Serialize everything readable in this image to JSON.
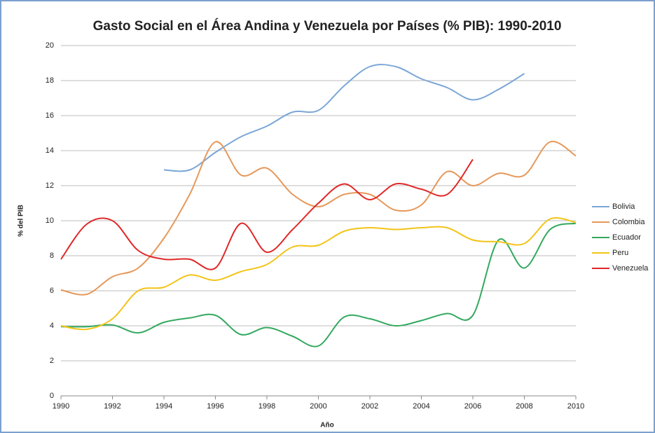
{
  "chart_data": {
    "type": "line",
    "title": "Gasto Social en el Área Andina y Venezuela por Países (% PIB): 1990-2010",
    "x_label": "Año",
    "y_label": "% del PIB",
    "x": [
      1990,
      1991,
      1992,
      1993,
      1994,
      1995,
      1996,
      1997,
      1998,
      1999,
      2000,
      2001,
      2002,
      2003,
      2004,
      2005,
      2006,
      2007,
      2008,
      2009,
      2010
    ],
    "xlim": [
      1990,
      2010
    ],
    "xticks": [
      1990,
      1992,
      1994,
      1996,
      1998,
      2000,
      2002,
      2004,
      2006,
      2008,
      2010
    ],
    "ylim": [
      0,
      20
    ],
    "yticks": [
      0,
      2,
      4,
      6,
      8,
      10,
      12,
      14,
      16,
      18,
      20
    ],
    "grid": true,
    "legend": "right",
    "smooth": true,
    "series": [
      {
        "name": "Bolivia",
        "color": "#7ba7d7",
        "values": [
          null,
          null,
          null,
          null,
          12.9,
          12.9,
          13.9,
          14.8,
          15.4,
          16.2,
          16.3,
          17.7,
          18.8,
          18.8,
          18.1,
          17.6,
          16.9,
          17.5,
          18.4,
          null,
          null
        ]
      },
      {
        "name": "Colombia",
        "color": "#e6985a",
        "values": [
          6.05,
          5.8,
          6.8,
          7.3,
          9.0,
          11.5,
          14.5,
          12.6,
          13.0,
          11.5,
          10.8,
          11.5,
          11.5,
          10.6,
          10.9,
          12.8,
          12.0,
          12.7,
          12.6,
          14.5,
          13.7
        ]
      },
      {
        "name": "Ecuador",
        "color": "#33a95e",
        "values": [
          3.95,
          3.95,
          4.05,
          3.6,
          4.2,
          4.45,
          4.6,
          3.5,
          3.9,
          3.4,
          2.85,
          4.5,
          4.4,
          4.0,
          4.3,
          4.7,
          4.6,
          8.9,
          7.3,
          9.5,
          9.85
        ]
      },
      {
        "name": "Peru",
        "color": "#f2c418",
        "values": [
          4.0,
          3.8,
          4.4,
          6.0,
          6.2,
          6.9,
          6.6,
          7.1,
          7.5,
          8.5,
          8.6,
          9.4,
          9.6,
          9.5,
          9.6,
          9.6,
          8.9,
          8.8,
          8.7,
          10.1,
          9.9
        ]
      },
      {
        "name": "Venezuela",
        "color": "#e02828",
        "values": [
          7.8,
          9.8,
          10.0,
          8.3,
          7.8,
          7.8,
          7.3,
          9.85,
          8.2,
          9.5,
          11.0,
          12.1,
          11.2,
          12.1,
          11.8,
          11.5,
          13.5,
          null,
          null,
          null,
          null
        ]
      }
    ]
  }
}
